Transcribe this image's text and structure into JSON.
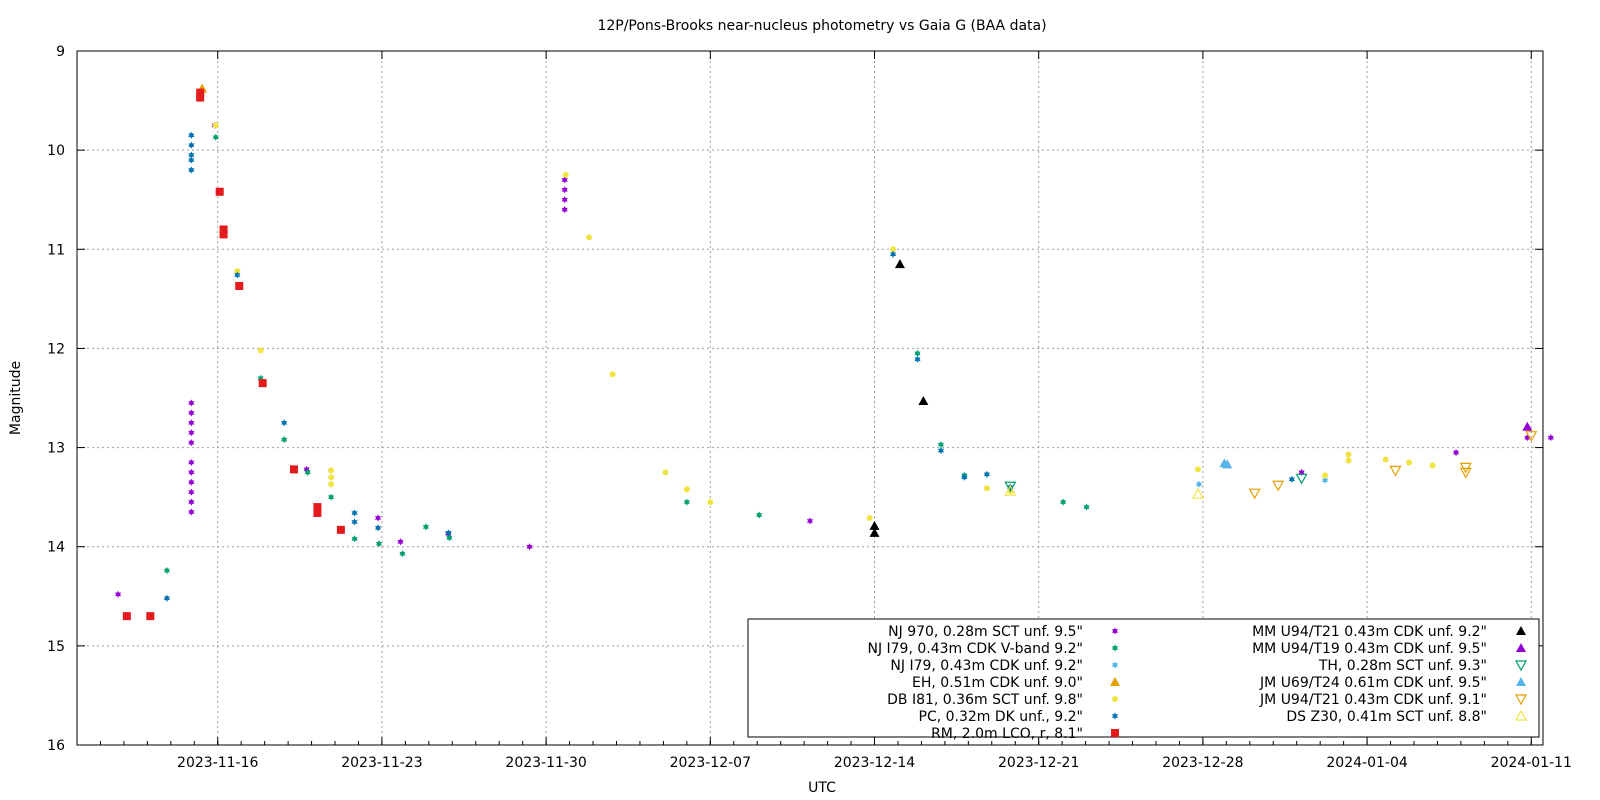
{
  "chart_data": {
    "type": "scatter",
    "title": "12P/Pons-Brooks near-nucleus photometry vs Gaia G (BAA data)",
    "xlabel": "UTC",
    "ylabel": "Magnitude",
    "xlim": [
      "2023-11-10T00:00",
      "2024-01-11T12:00"
    ],
    "ylim": [
      9,
      16
    ],
    "y_inverted": true,
    "grid": true,
    "legend_position": "bottom-right",
    "x_ticks": [
      "2023-11-16",
      "2023-11-23",
      "2023-11-30",
      "2023-12-07",
      "2023-12-14",
      "2023-12-21",
      "2023-12-28",
      "2024-01-04",
      "2024-01-11"
    ],
    "y_ticks": [
      9,
      10,
      11,
      12,
      13,
      14,
      15,
      16
    ],
    "series": [
      {
        "name": "NJ 970, 0.28m SCT unf. 9.5\"",
        "marker": "star",
        "color": "#9400d3",
        "points": [
          [
            "2023-11-11T18:00",
            14.48
          ],
          [
            "2023-11-14T21:00",
            12.55
          ],
          [
            "2023-11-14T21:00",
            12.65
          ],
          [
            "2023-11-14T21:00",
            12.75
          ],
          [
            "2023-11-14T21:00",
            12.85
          ],
          [
            "2023-11-14T21:00",
            12.95
          ],
          [
            "2023-11-14T21:00",
            13.15
          ],
          [
            "2023-11-14T21:00",
            13.25
          ],
          [
            "2023-11-14T21:00",
            13.35
          ],
          [
            "2023-11-14T21:00",
            13.45
          ],
          [
            "2023-11-14T21:00",
            13.55
          ],
          [
            "2023-11-14T21:00",
            13.65
          ],
          [
            "2023-11-15T21:00",
            9.75
          ],
          [
            "2023-11-19T19:00",
            13.22
          ],
          [
            "2023-11-22T20:00",
            13.71
          ],
          [
            "2023-11-23T19:00",
            13.95
          ],
          [
            "2023-11-25T20:00",
            13.87
          ],
          [
            "2023-11-29T07:00",
            14.0
          ],
          [
            "2023-11-30T19:00",
            10.3
          ],
          [
            "2023-11-30T19:00",
            10.4
          ],
          [
            "2023-11-30T19:00",
            10.5
          ],
          [
            "2023-11-30T19:00",
            10.6
          ],
          [
            "2023-12-11T06:00",
            13.74
          ],
          [
            "2024-01-01T05:00",
            13.25
          ],
          [
            "2024-01-07T19:00",
            13.05
          ],
          [
            "2024-01-10T20:00",
            12.9
          ],
          [
            "2024-01-11T20:00",
            12.9
          ]
        ]
      },
      {
        "name": "NJ I79, 0.43m CDK V-band 9.2\"",
        "marker": "star",
        "color": "#009e73",
        "points": [
          [
            "2023-11-13T20:00",
            14.24
          ],
          [
            "2023-11-15T22:00",
            9.87
          ],
          [
            "2023-11-17T20:00",
            12.3
          ],
          [
            "2023-11-18T20:00",
            12.92
          ],
          [
            "2023-11-19T20:00",
            13.25
          ],
          [
            "2023-11-20T20:00",
            13.5
          ],
          [
            "2023-11-21T20:00",
            13.92
          ],
          [
            "2023-11-22T21:00",
            13.97
          ],
          [
            "2023-11-23T21:00",
            14.07
          ],
          [
            "2023-11-24T21:00",
            13.8
          ],
          [
            "2023-11-25T21:00",
            13.91
          ],
          [
            "2023-12-06T00:00",
            13.55
          ],
          [
            "2023-12-09T02:00",
            13.68
          ],
          [
            "2023-12-15T20:00",
            12.05
          ],
          [
            "2023-12-16T20:00",
            12.97
          ],
          [
            "2023-12-17T20:00",
            13.28
          ],
          [
            "2023-12-22T01:00",
            13.55
          ],
          [
            "2023-12-23T01:00",
            13.6
          ]
        ]
      },
      {
        "name": "NJ I79, 0.43m CDK unf. 9.2\"",
        "marker": "star",
        "color": "#56b4e9",
        "points": [
          [
            "2023-12-27T20:00",
            13.37
          ],
          [
            "2024-01-02T05:00",
            13.33
          ]
        ]
      },
      {
        "name": "EH, 0.51m CDK unf. 9.0\"",
        "marker": "triangle",
        "color": "#e69f00",
        "points": [
          [
            "2023-11-15T08:00",
            9.38
          ]
        ]
      },
      {
        "name": "DB I81, 0.36m SCT unf. 9.8\"",
        "marker": "circle",
        "color": "#f0e442",
        "points": [
          [
            "2023-11-15T22:00",
            9.75
          ],
          [
            "2023-11-16T20:00",
            11.22
          ],
          [
            "2023-11-17T20:00",
            12.02
          ],
          [
            "2023-11-20T20:00",
            13.23
          ],
          [
            "2023-11-20T20:00",
            13.3
          ],
          [
            "2023-11-20T20:00",
            13.37
          ],
          [
            "2023-11-30T20:00",
            10.25
          ],
          [
            "2023-12-01T20:00",
            10.88
          ],
          [
            "2023-12-02T20:00",
            12.26
          ],
          [
            "2023-12-05T02:00",
            13.25
          ],
          [
            "2023-12-06T00:00",
            13.42
          ],
          [
            "2023-12-07T00:00",
            13.55
          ],
          [
            "2023-12-13T19:00",
            13.71
          ],
          [
            "2023-12-14T19:00",
            11.0
          ],
          [
            "2023-12-18T19:00",
            13.41
          ],
          [
            "2023-12-19T19:00",
            13.44
          ],
          [
            "2023-12-27T19:00",
            13.22
          ],
          [
            "2024-01-02T05:00",
            13.28
          ],
          [
            "2024-01-03T05:00",
            13.07
          ],
          [
            "2024-01-03T05:00",
            13.13
          ],
          [
            "2024-01-04T19:00",
            13.12
          ],
          [
            "2024-01-05T19:00",
            13.15
          ],
          [
            "2024-01-06T19:00",
            13.18
          ]
        ]
      },
      {
        "name": "PC, 0.32m DK unf., 9.2\"",
        "marker": "star",
        "color": "#0072b2",
        "points": [
          [
            "2023-11-13T20:00",
            14.52
          ],
          [
            "2023-11-14T21:00",
            9.85
          ],
          [
            "2023-11-14T21:00",
            9.95
          ],
          [
            "2023-11-14T21:00",
            10.05
          ],
          [
            "2023-11-14T21:00",
            10.1
          ],
          [
            "2023-11-14T21:00",
            10.2
          ],
          [
            "2023-11-16T20:00",
            11.26
          ],
          [
            "2023-11-18T20:00",
            12.75
          ],
          [
            "2023-11-21T20:00",
            13.66
          ],
          [
            "2023-11-21T20:00",
            13.75
          ],
          [
            "2023-11-22T20:00",
            13.81
          ],
          [
            "2023-11-25T20:00",
            13.86
          ],
          [
            "2023-12-14T19:00",
            11.05
          ],
          [
            "2023-12-15T20:00",
            12.11
          ],
          [
            "2023-12-16T20:00",
            13.03
          ],
          [
            "2023-12-17T20:00",
            13.3
          ],
          [
            "2023-12-18T19:00",
            13.27
          ],
          [
            "2023-12-19T19:00",
            13.4
          ],
          [
            "2023-12-31T19:00",
            13.32
          ]
        ]
      },
      {
        "name": "RM, 2.0m LCO, r, 8.1\"",
        "marker": "square",
        "color": "#e41a1c",
        "points": [
          [
            "2023-11-12T03:00",
            14.7
          ],
          [
            "2023-11-13T03:00",
            14.7
          ],
          [
            "2023-11-15T06:00",
            9.42
          ],
          [
            "2023-11-15T06:00",
            9.47
          ],
          [
            "2023-11-16T02:00",
            10.42
          ],
          [
            "2023-11-16T06:00",
            10.8
          ],
          [
            "2023-11-16T06:00",
            10.85
          ],
          [
            "2023-11-16T22:00",
            11.37
          ],
          [
            "2023-11-17T22:00",
            12.35
          ],
          [
            "2023-11-19T06:00",
            13.22
          ],
          [
            "2023-11-20T06:00",
            13.6
          ],
          [
            "2023-11-20T06:00",
            13.66
          ],
          [
            "2023-11-21T06:00",
            13.83
          ]
        ]
      },
      {
        "name": "MM U94/T21 0.43m CDK unf. 9.2\"",
        "marker": "triangle",
        "color": "#000000",
        "points": [
          [
            "2023-12-14T00:00",
            13.79
          ],
          [
            "2023-12-14T00:00",
            13.86
          ],
          [
            "2023-12-15T02:00",
            11.15
          ],
          [
            "2023-12-16T02:00",
            12.53
          ]
        ]
      },
      {
        "name": "MM U94/T19 0.43m CDK unf. 9.5\"",
        "marker": "triangle",
        "color": "#9400d3",
        "points": [
          [
            "2024-01-10T20:00",
            12.79
          ]
        ]
      },
      {
        "name": "TH, 0.28m SCT unf. 9.3\"",
        "marker": "triangle-down-open",
        "color": "#009e73",
        "points": [
          [
            "2023-12-19T19:00",
            13.39
          ],
          [
            "2024-01-01T05:00",
            13.31
          ]
        ]
      },
      {
        "name": "JM U69/T24 0.61m CDK unf. 9.5\"",
        "marker": "triangle",
        "color": "#56b4e9",
        "points": [
          [
            "2023-12-28T22:00",
            13.16
          ],
          [
            "2023-12-29T01:00",
            13.17
          ]
        ]
      },
      {
        "name": "JM U94/T21 0.43m CDK unf. 9.1\"",
        "marker": "triangle-down-open",
        "color": "#e69f00",
        "points": [
          [
            "2023-12-30T05:00",
            13.46
          ],
          [
            "2023-12-31T05:00",
            13.38
          ],
          [
            "2024-01-05T05:00",
            13.23
          ],
          [
            "2024-01-08T05:00",
            13.2
          ],
          [
            "2024-01-08T05:00",
            13.25
          ],
          [
            "2024-01-11T00:00",
            12.88
          ]
        ]
      },
      {
        "name": "DS Z30, 0.41m SCT unf. 8.8\"",
        "marker": "triangle-open",
        "color": "#f0e442",
        "points": [
          [
            "2023-12-27T19:00",
            13.47
          ],
          [
            "2023-12-19T19:00",
            13.44
          ]
        ]
      }
    ]
  }
}
